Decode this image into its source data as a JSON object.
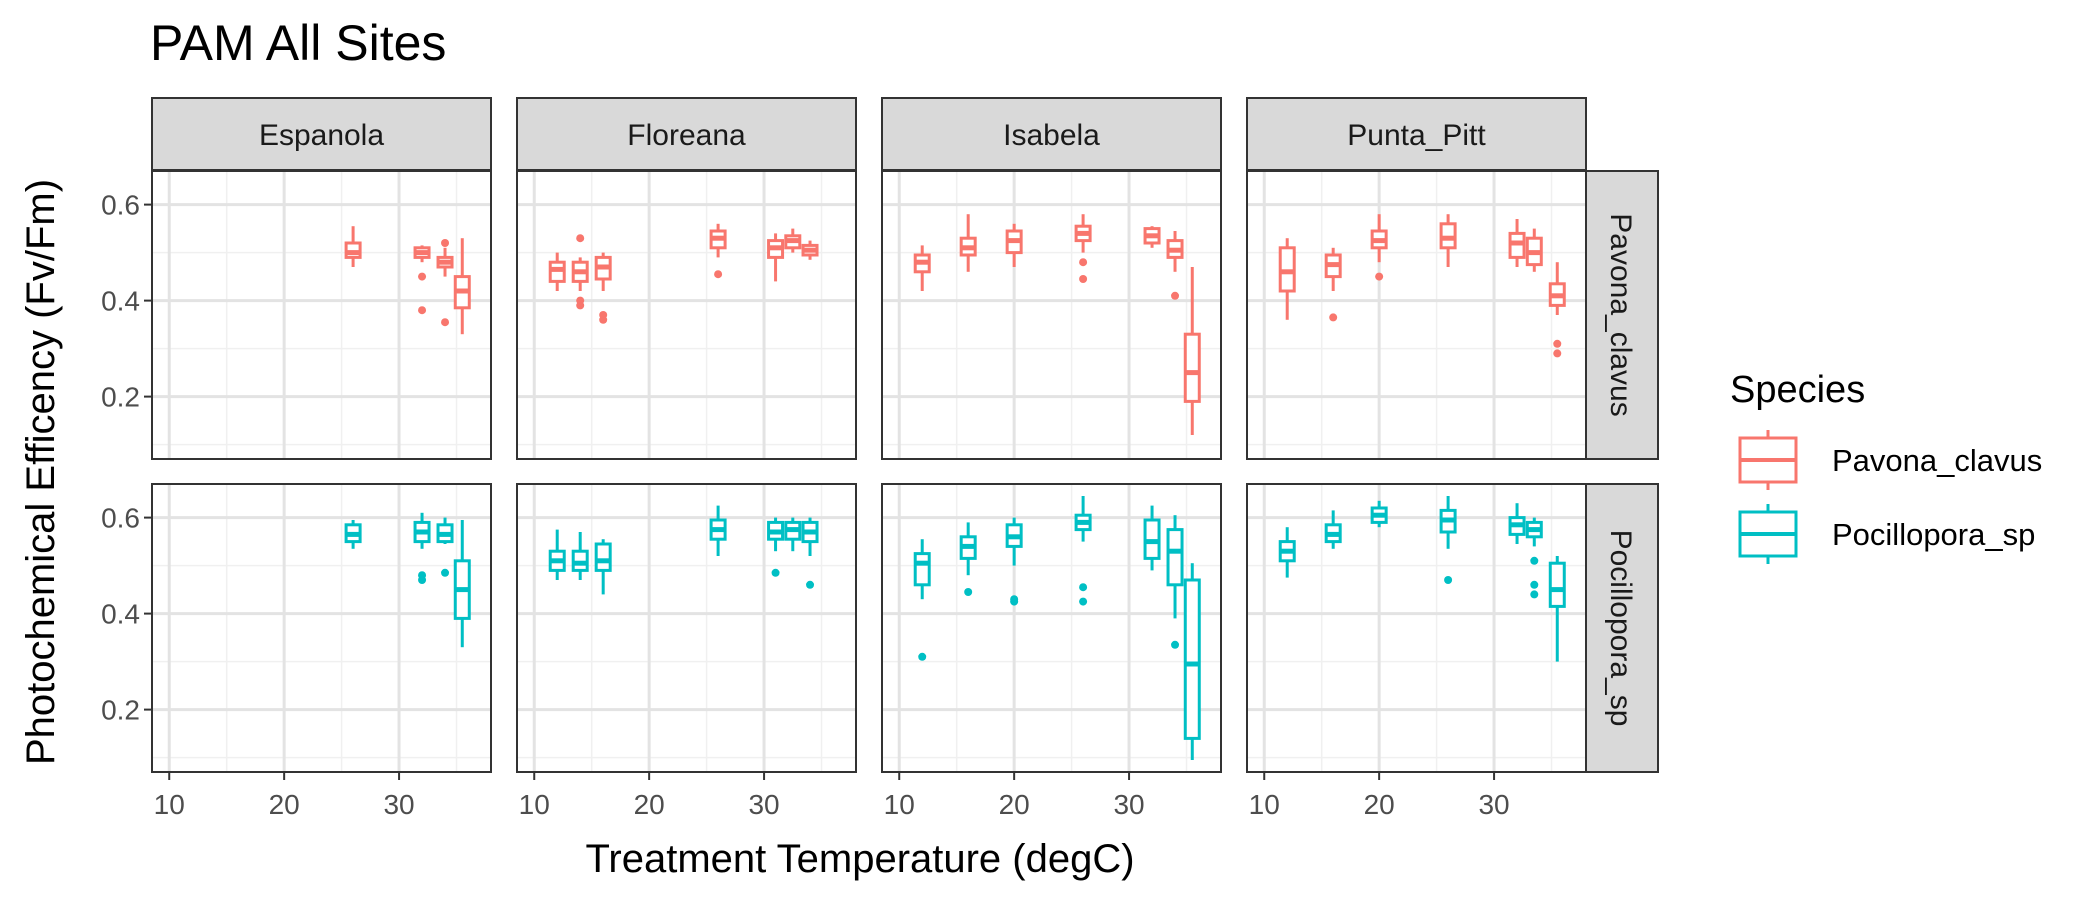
{
  "chart_data": {
    "type": "box",
    "title": "PAM All Sites",
    "xlabel": "Treatment Temperature (degC)",
    "ylabel": "Photochemical Efficency (Fv/Fm)",
    "xlim": [
      8.5,
      38
    ],
    "ylim": [
      0.07,
      0.67
    ],
    "x_ticks": [
      10,
      20,
      30
    ],
    "y_ticks": [
      0.2,
      0.4,
      0.6
    ],
    "grid": true,
    "legend": {
      "title": "Species",
      "position": "right",
      "items": [
        {
          "label": "Pavona_clavus",
          "color": "#F8766D"
        },
        {
          "label": "Pocillopora_sp",
          "color": "#00BFC4"
        }
      ]
    },
    "columns": [
      "Espanola",
      "Floreana",
      "Isabela",
      "Punta_Pitt"
    ],
    "rows": [
      "Pavona_clavus",
      "Pocillopora_sp"
    ],
    "panels": {
      "Pavona_clavus": {
        "Espanola": [
          {
            "x": 26,
            "lw": 0.47,
            "q1": 0.49,
            "med": 0.5,
            "q3": 0.52,
            "hw": 0.555,
            "out": []
          },
          {
            "x": 32,
            "lw": 0.48,
            "q1": 0.49,
            "med": 0.5,
            "q3": 0.51,
            "hw": 0.515,
            "out": [
              0.38,
              0.45
            ]
          },
          {
            "x": 34,
            "lw": 0.45,
            "q1": 0.47,
            "med": 0.48,
            "q3": 0.49,
            "hw": 0.51,
            "out": [
              0.355,
              0.52
            ]
          },
          {
            "x": 35.5,
            "lw": 0.33,
            "q1": 0.385,
            "med": 0.42,
            "q3": 0.45,
            "hw": 0.53,
            "out": []
          }
        ],
        "Floreana": [
          {
            "x": 12,
            "lw": 0.42,
            "q1": 0.44,
            "med": 0.465,
            "q3": 0.48,
            "hw": 0.5,
            "out": []
          },
          {
            "x": 14,
            "lw": 0.42,
            "q1": 0.44,
            "med": 0.46,
            "q3": 0.48,
            "hw": 0.49,
            "out": [
              0.39,
              0.4,
              0.53
            ]
          },
          {
            "x": 16,
            "lw": 0.42,
            "q1": 0.445,
            "med": 0.47,
            "q3": 0.49,
            "hw": 0.5,
            "out": [
              0.36,
              0.37
            ]
          },
          {
            "x": 26,
            "lw": 0.49,
            "q1": 0.51,
            "med": 0.53,
            "q3": 0.545,
            "hw": 0.56,
            "out": [
              0.455
            ]
          },
          {
            "x": 31,
            "lw": 0.44,
            "q1": 0.49,
            "med": 0.51,
            "q3": 0.525,
            "hw": 0.54,
            "out": []
          },
          {
            "x": 32.5,
            "lw": 0.5,
            "q1": 0.51,
            "med": 0.525,
            "q3": 0.535,
            "hw": 0.55,
            "out": []
          },
          {
            "x": 34,
            "lw": 0.485,
            "q1": 0.495,
            "med": 0.505,
            "q3": 0.515,
            "hw": 0.525,
            "out": []
          }
        ],
        "Isabela": [
          {
            "x": 12,
            "lw": 0.42,
            "q1": 0.46,
            "med": 0.48,
            "q3": 0.495,
            "hw": 0.515,
            "out": []
          },
          {
            "x": 16,
            "lw": 0.46,
            "q1": 0.495,
            "med": 0.51,
            "q3": 0.53,
            "hw": 0.58,
            "out": []
          },
          {
            "x": 20,
            "lw": 0.47,
            "q1": 0.5,
            "med": 0.525,
            "q3": 0.545,
            "hw": 0.56,
            "out": []
          },
          {
            "x": 26,
            "lw": 0.5,
            "q1": 0.525,
            "med": 0.54,
            "q3": 0.555,
            "hw": 0.58,
            "out": [
              0.445,
              0.48
            ]
          },
          {
            "x": 32,
            "lw": 0.51,
            "q1": 0.52,
            "med": 0.535,
            "q3": 0.55,
            "hw": 0.555,
            "out": []
          },
          {
            "x": 34,
            "lw": 0.46,
            "q1": 0.49,
            "med": 0.505,
            "q3": 0.525,
            "hw": 0.545,
            "out": [
              0.41
            ]
          },
          {
            "x": 35.5,
            "lw": 0.12,
            "q1": 0.19,
            "med": 0.25,
            "q3": 0.33,
            "hw": 0.47,
            "out": []
          }
        ],
        "Punta_Pitt": [
          {
            "x": 12,
            "lw": 0.36,
            "q1": 0.42,
            "med": 0.46,
            "q3": 0.51,
            "hw": 0.53,
            "out": []
          },
          {
            "x": 16,
            "lw": 0.42,
            "q1": 0.45,
            "med": 0.475,
            "q3": 0.495,
            "hw": 0.51,
            "out": [
              0.365
            ]
          },
          {
            "x": 20,
            "lw": 0.48,
            "q1": 0.51,
            "med": 0.525,
            "q3": 0.545,
            "hw": 0.58,
            "out": [
              0.45
            ]
          },
          {
            "x": 26,
            "lw": 0.47,
            "q1": 0.51,
            "med": 0.53,
            "q3": 0.56,
            "hw": 0.58,
            "out": []
          },
          {
            "x": 32,
            "lw": 0.47,
            "q1": 0.49,
            "med": 0.52,
            "q3": 0.54,
            "hw": 0.57,
            "out": []
          },
          {
            "x": 33.5,
            "lw": 0.46,
            "q1": 0.475,
            "med": 0.5,
            "q3": 0.53,
            "hw": 0.55,
            "out": []
          },
          {
            "x": 35.5,
            "lw": 0.37,
            "q1": 0.39,
            "med": 0.41,
            "q3": 0.435,
            "hw": 0.48,
            "out": [
              0.29,
              0.31
            ]
          }
        ]
      },
      "Pocillopora_sp": {
        "Espanola": [
          {
            "x": 26,
            "lw": 0.535,
            "q1": 0.55,
            "med": 0.565,
            "q3": 0.585,
            "hw": 0.595,
            "out": []
          },
          {
            "x": 32,
            "lw": 0.535,
            "q1": 0.55,
            "med": 0.57,
            "q3": 0.59,
            "hw": 0.61,
            "out": [
              0.47,
              0.48
            ]
          },
          {
            "x": 34,
            "lw": 0.545,
            "q1": 0.55,
            "med": 0.565,
            "q3": 0.585,
            "hw": 0.6,
            "out": [
              0.485
            ]
          },
          {
            "x": 35.5,
            "lw": 0.33,
            "q1": 0.39,
            "med": 0.45,
            "q3": 0.51,
            "hw": 0.595,
            "out": []
          }
        ],
        "Floreana": [
          {
            "x": 12,
            "lw": 0.47,
            "q1": 0.49,
            "med": 0.51,
            "q3": 0.53,
            "hw": 0.575,
            "out": []
          },
          {
            "x": 14,
            "lw": 0.47,
            "q1": 0.49,
            "med": 0.505,
            "q3": 0.53,
            "hw": 0.57,
            "out": []
          },
          {
            "x": 16,
            "lw": 0.44,
            "q1": 0.49,
            "med": 0.51,
            "q3": 0.545,
            "hw": 0.555,
            "out": []
          },
          {
            "x": 26,
            "lw": 0.52,
            "q1": 0.555,
            "med": 0.575,
            "q3": 0.595,
            "hw": 0.625,
            "out": []
          },
          {
            "x": 31,
            "lw": 0.53,
            "q1": 0.555,
            "med": 0.57,
            "q3": 0.59,
            "hw": 0.6,
            "out": [
              0.485
            ]
          },
          {
            "x": 32.5,
            "lw": 0.53,
            "q1": 0.555,
            "med": 0.575,
            "q3": 0.59,
            "hw": 0.6,
            "out": []
          },
          {
            "x": 34,
            "lw": 0.52,
            "q1": 0.55,
            "med": 0.57,
            "q3": 0.59,
            "hw": 0.6,
            "out": [
              0.46
            ]
          }
        ],
        "Isabela": [
          {
            "x": 12,
            "lw": 0.43,
            "q1": 0.46,
            "med": 0.505,
            "q3": 0.525,
            "hw": 0.555,
            "out": [
              0.31
            ]
          },
          {
            "x": 16,
            "lw": 0.48,
            "q1": 0.515,
            "med": 0.54,
            "q3": 0.56,
            "hw": 0.59,
            "out": [
              0.445
            ]
          },
          {
            "x": 20,
            "lw": 0.5,
            "q1": 0.54,
            "med": 0.56,
            "q3": 0.585,
            "hw": 0.6,
            "out": [
              0.425,
              0.43
            ]
          },
          {
            "x": 26,
            "lw": 0.55,
            "q1": 0.575,
            "med": 0.59,
            "q3": 0.605,
            "hw": 0.645,
            "out": [
              0.425,
              0.455
            ]
          },
          {
            "x": 32,
            "lw": 0.49,
            "q1": 0.515,
            "med": 0.55,
            "q3": 0.595,
            "hw": 0.625,
            "out": []
          },
          {
            "x": 34,
            "lw": 0.39,
            "q1": 0.46,
            "med": 0.53,
            "q3": 0.575,
            "hw": 0.605,
            "out": [
              0.335
            ]
          },
          {
            "x": 35.5,
            "lw": 0.095,
            "q1": 0.14,
            "med": 0.295,
            "q3": 0.47,
            "hw": 0.505,
            "out": []
          }
        ],
        "Punta_Pitt": [
          {
            "x": 12,
            "lw": 0.475,
            "q1": 0.51,
            "med": 0.53,
            "q3": 0.55,
            "hw": 0.58,
            "out": []
          },
          {
            "x": 16,
            "lw": 0.535,
            "q1": 0.55,
            "med": 0.565,
            "q3": 0.585,
            "hw": 0.615,
            "out": []
          },
          {
            "x": 20,
            "lw": 0.58,
            "q1": 0.59,
            "med": 0.605,
            "q3": 0.62,
            "hw": 0.635,
            "out": []
          },
          {
            "x": 26,
            "lw": 0.535,
            "q1": 0.57,
            "med": 0.595,
            "q3": 0.615,
            "hw": 0.645,
            "out": [
              0.47
            ]
          },
          {
            "x": 32,
            "lw": 0.545,
            "q1": 0.565,
            "med": 0.585,
            "q3": 0.6,
            "hw": 0.63,
            "out": []
          },
          {
            "x": 33.5,
            "lw": 0.54,
            "q1": 0.56,
            "med": 0.575,
            "q3": 0.59,
            "hw": 0.6,
            "out": [
              0.44,
              0.46,
              0.51
            ]
          },
          {
            "x": 35.5,
            "lw": 0.3,
            "q1": 0.415,
            "med": 0.45,
            "q3": 0.505,
            "hw": 0.52,
            "out": []
          }
        ]
      }
    }
  }
}
